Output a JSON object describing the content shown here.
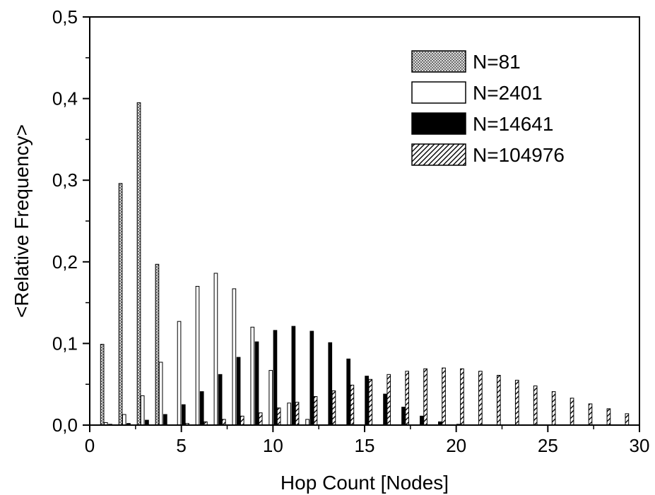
{
  "chart_data": {
    "type": "bar",
    "xlabel": "Hop Count [Nodes]",
    "ylabel": "<Relative Frequency>",
    "xlim": [
      0,
      30
    ],
    "ylim": [
      0,
      0.5
    ],
    "x_ticks": [
      "0",
      "5",
      "10",
      "15",
      "20",
      "25",
      "30"
    ],
    "y_ticks": [
      "0,0",
      "0,1",
      "0,2",
      "0,3",
      "0,4",
      "0,5"
    ],
    "grid": false,
    "legend_position": "top-right",
    "hop_counts": [
      1,
      2,
      3,
      4,
      5,
      6,
      7,
      8,
      9,
      10,
      11,
      12,
      13,
      14,
      15,
      16,
      17,
      18,
      19,
      20,
      21,
      22,
      23,
      24,
      25,
      26,
      27,
      28,
      29
    ],
    "series": [
      {
        "name": "N=81",
        "pattern": "crosshatch",
        "values": [
          0.099,
          0.296,
          0.395,
          0.197,
          0.0,
          0.0,
          0.0,
          0.0,
          0.0,
          0.0,
          0.0,
          0.0,
          0.0,
          0.0,
          0.0,
          0.0,
          0.0,
          0.0,
          0.0,
          0.0,
          0.0,
          0.0,
          0.0,
          0.0,
          0.0,
          0.0,
          0.0,
          0.0,
          0.0
        ]
      },
      {
        "name": "N=2401",
        "pattern": "white",
        "values": [
          0.003,
          0.013,
          0.036,
          0.077,
          0.127,
          0.17,
          0.186,
          0.167,
          0.12,
          0.067,
          0.027,
          0.007,
          0.0,
          0.0,
          0.0,
          0.0,
          0.0,
          0.0,
          0.0,
          0.0,
          0.0,
          0.0,
          0.0,
          0.0,
          0.0,
          0.0,
          0.0,
          0.0,
          0.0
        ]
      },
      {
        "name": "N=14641",
        "pattern": "black",
        "values": [
          0.001,
          0.002,
          0.006,
          0.013,
          0.025,
          0.041,
          0.062,
          0.083,
          0.102,
          0.116,
          0.121,
          0.115,
          0.101,
          0.081,
          0.06,
          0.038,
          0.022,
          0.011,
          0.004,
          0.001,
          0.0,
          0.0,
          0.0,
          0.0,
          0.0,
          0.0,
          0.0,
          0.0,
          0.0
        ]
      },
      {
        "name": "N=104976",
        "pattern": "diagonal",
        "values": [
          0.0,
          0.0,
          0.0,
          0.0,
          0.002,
          0.004,
          0.007,
          0.011,
          0.015,
          0.021,
          0.028,
          0.035,
          0.042,
          0.049,
          0.056,
          0.062,
          0.066,
          0.069,
          0.07,
          0.069,
          0.066,
          0.061,
          0.055,
          0.048,
          0.041,
          0.033,
          0.026,
          0.02,
          0.014
        ]
      }
    ]
  }
}
